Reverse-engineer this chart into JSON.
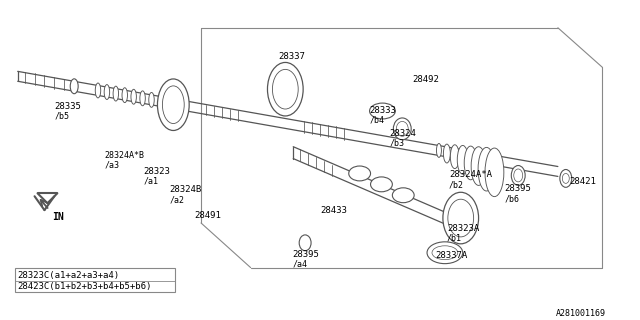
{
  "background_color": "#ffffff",
  "lc": "#555555",
  "lc2": "#888888",
  "sub_labels": [
    "28323C(a1+a2+a3+a4)",
    "28423C(b1+b2+b3+b4+b5+b6)"
  ],
  "diagram_note": "A281001169",
  "labels": {
    "28335": [
      52,
      100,
      "/b5",
      52,
      109
    ],
    "28324A_B": [
      103,
      148,
      "/a3",
      103,
      157
    ],
    "28323": [
      140,
      163,
      "/a1",
      140,
      172
    ],
    "28324B": [
      168,
      183,
      "/a2",
      168,
      192
    ],
    "28491": [
      195,
      210,
      null,
      null,
      null
    ],
    "28337": [
      285,
      48,
      null,
      null,
      null
    ],
    "28492": [
      415,
      72,
      null,
      null,
      null
    ],
    "28333": [
      372,
      103,
      "/b4",
      372,
      112
    ],
    "28324": [
      393,
      126,
      "/b3",
      393,
      135
    ],
    "28433": [
      325,
      205,
      null,
      null,
      null
    ],
    "28395a4": [
      293,
      248,
      "/a4",
      293,
      257
    ],
    "28323A": [
      448,
      223,
      "/b1",
      448,
      232
    ],
    "28337A": [
      437,
      250,
      null,
      null,
      null
    ],
    "28324A_A": [
      453,
      168,
      "/b2",
      453,
      177
    ],
    "28395b6": [
      508,
      182,
      "/b6",
      508,
      191
    ],
    "28421": [
      572,
      174,
      null,
      null,
      null
    ]
  }
}
